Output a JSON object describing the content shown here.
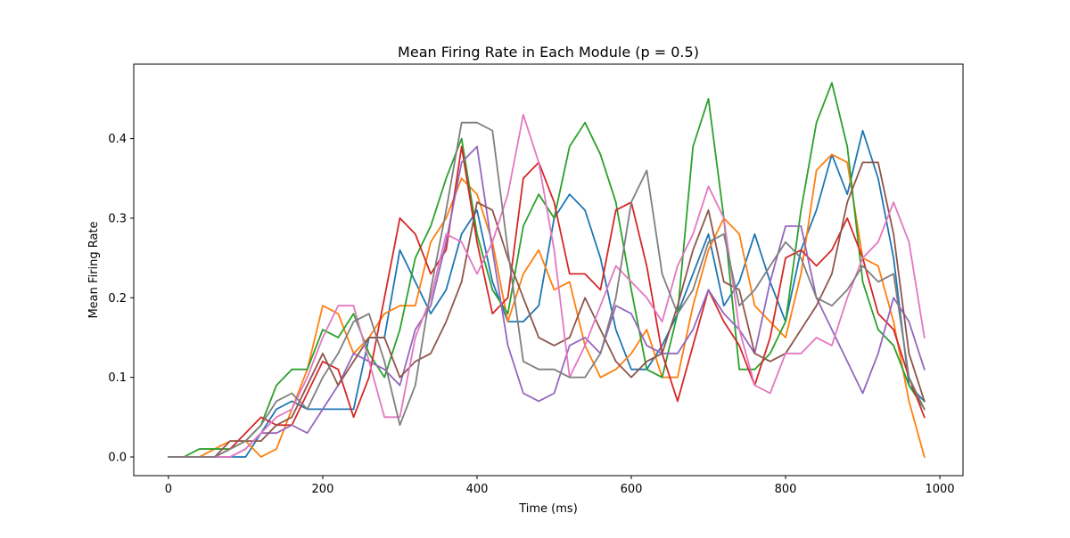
{
  "chart_data": {
    "type": "line",
    "title": "Mean Firing Rate in Each Module (p = 0.5)",
    "xlabel": "Time (ms)",
    "ylabel": "Mean Firing Rate",
    "xlim": [
      -45,
      1030
    ],
    "ylim": [
      -0.0235,
      0.4935
    ],
    "xticks": [
      0,
      200,
      400,
      600,
      800,
      1000
    ],
    "xtick_labels": [
      "0",
      "200",
      "400",
      "600",
      "800",
      "1000"
    ],
    "yticks": [
      0.0,
      0.1,
      0.2,
      0.3,
      0.4
    ],
    "ytick_labels": [
      "0.0",
      "0.1",
      "0.2",
      "0.3",
      "0.4"
    ],
    "grid": false,
    "legend": "none",
    "x": [
      0,
      20,
      40,
      60,
      80,
      100,
      120,
      140,
      160,
      180,
      200,
      220,
      240,
      260,
      280,
      300,
      320,
      340,
      360,
      380,
      400,
      420,
      440,
      460,
      480,
      500,
      520,
      540,
      560,
      580,
      600,
      620,
      640,
      660,
      680,
      700,
      720,
      740,
      760,
      780,
      800,
      820,
      840,
      860,
      880,
      900,
      920,
      940,
      960,
      980
    ],
    "series": [
      {
        "color": "#1f77b4",
        "values": [
          0,
          0,
          0,
          0,
          0,
          0,
          0.03,
          0.06,
          0.07,
          0.06,
          0.06,
          0.06,
          0.06,
          0.15,
          0.15,
          0.26,
          0.22,
          0.18,
          0.21,
          0.28,
          0.31,
          0.22,
          0.17,
          0.17,
          0.19,
          0.3,
          0.33,
          0.31,
          0.25,
          0.16,
          0.11,
          0.11,
          0.14,
          0.18,
          0.23,
          0.28,
          0.19,
          0.22,
          0.28,
          0.22,
          0.17,
          0.26,
          0.31,
          0.38,
          0.33,
          0.41,
          0.35,
          0.25,
          0.09,
          0.07
        ]
      },
      {
        "color": "#ff7f0e",
        "values": [
          0,
          0,
          0,
          0.01,
          0.02,
          0.02,
          0,
          0.01,
          0.06,
          0.11,
          0.19,
          0.18,
          0.13,
          0.15,
          0.18,
          0.19,
          0.19,
          0.27,
          0.3,
          0.35,
          0.33,
          0.27,
          0.17,
          0.23,
          0.26,
          0.21,
          0.22,
          0.14,
          0.1,
          0.11,
          0.13,
          0.16,
          0.1,
          0.1,
          0.19,
          0.26,
          0.3,
          0.28,
          0.19,
          0.17,
          0.15,
          0.23,
          0.36,
          0.38,
          0.37,
          0.25,
          0.24,
          0.17,
          0.07,
          0
        ]
      },
      {
        "color": "#2ca02c",
        "values": [
          0,
          0,
          0.01,
          0.01,
          0.01,
          0.02,
          0.04,
          0.09,
          0.11,
          0.11,
          0.16,
          0.15,
          0.18,
          0.13,
          0.1,
          0.16,
          0.25,
          0.29,
          0.35,
          0.4,
          0.28,
          0.21,
          0.18,
          0.29,
          0.33,
          0.3,
          0.39,
          0.42,
          0.38,
          0.32,
          0.21,
          0.11,
          0.1,
          0.18,
          0.39,
          0.45,
          0.3,
          0.11,
          0.11,
          0.13,
          0.17,
          0.31,
          0.42,
          0.47,
          0.39,
          0.22,
          0.16,
          0.14,
          0.09,
          0.06
        ]
      },
      {
        "color": "#d62728",
        "values": [
          0,
          0,
          0,
          0,
          0.01,
          0.03,
          0.05,
          0.04,
          0.04,
          0.08,
          0.12,
          0.11,
          0.05,
          0.1,
          0.2,
          0.3,
          0.28,
          0.23,
          0.26,
          0.39,
          0.27,
          0.18,
          0.2,
          0.35,
          0.37,
          0.32,
          0.23,
          0.23,
          0.21,
          0.31,
          0.32,
          0.24,
          0.13,
          0.07,
          0.14,
          0.21,
          0.17,
          0.14,
          0.09,
          0.15,
          0.25,
          0.26,
          0.24,
          0.26,
          0.3,
          0.25,
          0.18,
          0.16,
          0.1,
          0.05
        ]
      },
      {
        "color": "#9467bd",
        "values": [
          0,
          0,
          0,
          0,
          0,
          0.01,
          0.03,
          0.03,
          0.04,
          0.03,
          0.06,
          0.09,
          0.13,
          0.12,
          0.11,
          0.09,
          0.16,
          0.19,
          0.27,
          0.37,
          0.39,
          0.26,
          0.14,
          0.08,
          0.07,
          0.08,
          0.14,
          0.15,
          0.13,
          0.19,
          0.18,
          0.14,
          0.13,
          0.13,
          0.16,
          0.21,
          0.18,
          0.16,
          0.13,
          0.22,
          0.29,
          0.29,
          0.2,
          0.16,
          0.12,
          0.08,
          0.13,
          0.2,
          0.17,
          0.11
        ]
      },
      {
        "color": "#8c564b",
        "values": [
          0,
          0,
          0,
          0,
          0.02,
          0.02,
          0.02,
          0.04,
          0.05,
          0.09,
          0.13,
          0.09,
          0.12,
          0.15,
          0.15,
          0.1,
          0.12,
          0.13,
          0.17,
          0.22,
          0.32,
          0.31,
          0.25,
          0.2,
          0.15,
          0.14,
          0.15,
          0.2,
          0.16,
          0.12,
          0.1,
          0.12,
          0.13,
          0.19,
          0.26,
          0.31,
          0.22,
          0.21,
          0.13,
          0.12,
          0.13,
          0.16,
          0.19,
          0.23,
          0.32,
          0.37,
          0.37,
          0.28,
          0.13,
          0.07
        ]
      },
      {
        "color": "#e377c2",
        "values": [
          0,
          0,
          0,
          0,
          0,
          0.01,
          0.03,
          0.05,
          0.06,
          0.1,
          0.15,
          0.19,
          0.19,
          0.12,
          0.05,
          0.05,
          0.15,
          0.2,
          0.28,
          0.27,
          0.23,
          0.27,
          0.33,
          0.43,
          0.37,
          0.26,
          0.1,
          0.14,
          0.19,
          0.24,
          0.22,
          0.2,
          0.17,
          0.24,
          0.28,
          0.34,
          0.3,
          0.16,
          0.09,
          0.08,
          0.13,
          0.13,
          0.15,
          0.14,
          0.2,
          0.25,
          0.27,
          0.32,
          0.27,
          0.15
        ]
      },
      {
        "color": "#7f7f7f",
        "values": [
          0,
          0,
          0,
          0,
          0.01,
          0.02,
          0.04,
          0.07,
          0.08,
          0.06,
          0.1,
          0.13,
          0.17,
          0.18,
          0.12,
          0.04,
          0.09,
          0.21,
          0.31,
          0.42,
          0.42,
          0.41,
          0.26,
          0.12,
          0.11,
          0.11,
          0.1,
          0.1,
          0.13,
          0.2,
          0.32,
          0.36,
          0.23,
          0.18,
          0.21,
          0.27,
          0.28,
          0.19,
          0.21,
          0.24,
          0.27,
          0.25,
          0.2,
          0.19,
          0.21,
          0.24,
          0.22,
          0.23,
          0.1,
          0.06
        ]
      }
    ]
  }
}
